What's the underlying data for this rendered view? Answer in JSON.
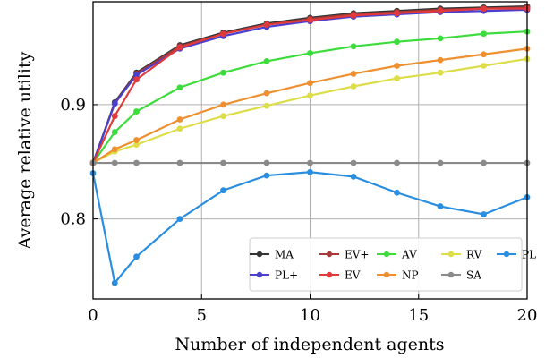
{
  "chart_data": {
    "type": "line",
    "xlabel": "Number of independent agents",
    "ylabel": "Average relative utility",
    "xlim": [
      0,
      20
    ],
    "ylim": [
      0.73,
      0.99
    ],
    "xticks": [
      "0",
      "5",
      "10",
      "15",
      "20"
    ],
    "yticks": [
      "0.8",
      "0.9"
    ],
    "grid": true,
    "legend_position": "bottom-right",
    "series": [
      {
        "name": "MA",
        "color": "#333333",
        "x": [
          0,
          1,
          2,
          4,
          6,
          8,
          10,
          12,
          14,
          16,
          18,
          20
        ],
        "y": [
          0.849,
          0.902,
          0.928,
          0.952,
          0.963,
          0.971,
          0.976,
          0.98,
          0.982,
          0.984,
          0.985,
          0.986
        ]
      },
      {
        "name": "EV+",
        "color": "#a83a3a",
        "x": [
          0,
          1,
          2,
          4,
          6,
          8,
          10,
          12,
          14,
          16,
          18,
          20
        ],
        "y": [
          0.849,
          0.901,
          0.927,
          0.951,
          0.962,
          0.97,
          0.975,
          0.979,
          0.981,
          0.983,
          0.984,
          0.985
        ]
      },
      {
        "name": "AV",
        "color": "#3ddc3d",
        "x": [
          0,
          1,
          2,
          4,
          6,
          8,
          10,
          12,
          14,
          16,
          18,
          20
        ],
        "y": [
          0.849,
          0.876,
          0.894,
          0.915,
          0.928,
          0.938,
          0.945,
          0.951,
          0.955,
          0.958,
          0.962,
          0.964
        ]
      },
      {
        "name": "RV",
        "color": "#dddd4a",
        "x": [
          0,
          1,
          2,
          4,
          6,
          8,
          10,
          12,
          14,
          16,
          18,
          20
        ],
        "y": [
          0.849,
          0.859,
          0.865,
          0.879,
          0.89,
          0.899,
          0.908,
          0.916,
          0.923,
          0.928,
          0.934,
          0.94
        ]
      },
      {
        "name": "PL",
        "color": "#2a8ee0",
        "x": [
          0,
          1,
          2,
          4,
          6,
          8,
          10,
          12,
          14,
          16,
          18,
          20
        ],
        "y": [
          0.84,
          0.744,
          0.767,
          0.8,
          0.825,
          0.838,
          0.841,
          0.837,
          0.823,
          0.811,
          0.804,
          0.819
        ]
      },
      {
        "name": "PL+",
        "color": "#4a3fcf",
        "x": [
          0,
          1,
          2,
          4,
          6,
          8,
          10,
          12,
          14,
          16,
          18,
          20
        ],
        "y": [
          0.849,
          0.901,
          0.926,
          0.949,
          0.96,
          0.968,
          0.973,
          0.977,
          0.979,
          0.981,
          0.982,
          0.983
        ]
      },
      {
        "name": "EV",
        "color": "#e03a3a",
        "x": [
          0,
          1,
          2,
          4,
          6,
          8,
          10,
          12,
          14,
          16,
          18,
          20
        ],
        "y": [
          0.849,
          0.89,
          0.922,
          0.95,
          0.962,
          0.97,
          0.974,
          0.978,
          0.98,
          0.982,
          0.984,
          0.984
        ]
      },
      {
        "name": "NP",
        "color": "#ee9030",
        "x": [
          0,
          1,
          2,
          4,
          6,
          8,
          10,
          12,
          14,
          16,
          18,
          20
        ],
        "y": [
          0.849,
          0.861,
          0.869,
          0.887,
          0.9,
          0.91,
          0.919,
          0.927,
          0.934,
          0.939,
          0.944,
          0.949
        ]
      },
      {
        "name": "SA",
        "color": "#8a8a8a",
        "x": [
          0,
          1,
          2,
          4,
          6,
          8,
          10,
          12,
          14,
          16,
          18,
          20
        ],
        "y": [
          0.849,
          0.849,
          0.849,
          0.849,
          0.849,
          0.849,
          0.849,
          0.849,
          0.849,
          0.849,
          0.849,
          0.849
        ]
      }
    ],
    "legend_order": [
      "MA",
      "EV+",
      "AV",
      "RV",
      "PL",
      "PL+",
      "EV",
      "NP",
      "SA"
    ]
  }
}
